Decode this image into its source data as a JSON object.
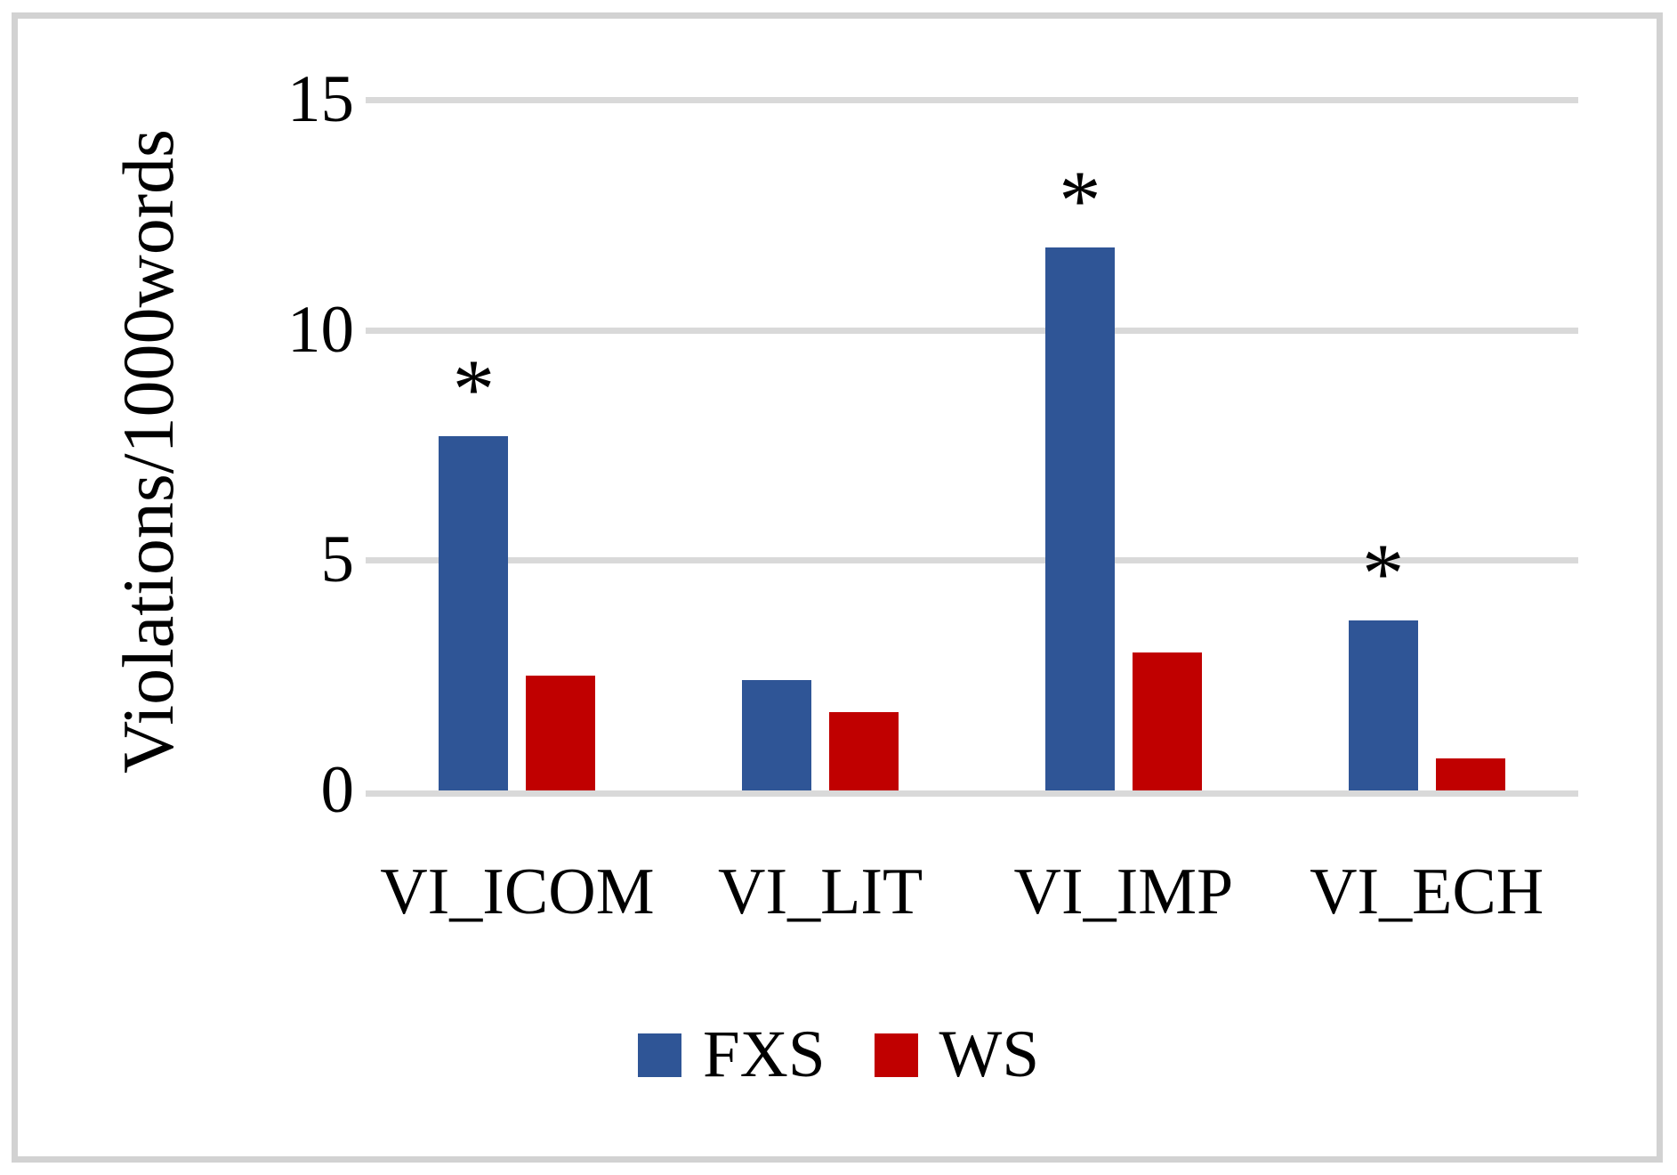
{
  "chart_data": {
    "type": "bar",
    "title": "",
    "categories": [
      "VI_ICOM",
      "VI_LIT",
      "VI_IMP",
      "VI_ECH"
    ],
    "series": [
      {
        "name": "FXS",
        "color": "#2f5596",
        "values": [
          7.7,
          2.4,
          11.8,
          3.7
        ]
      },
      {
        "name": "WS",
        "color": "#c00000",
        "values": [
          2.5,
          1.7,
          3.0,
          0.7
        ]
      }
    ],
    "significance": {
      "symbol": "*",
      "flags": [
        true,
        false,
        true,
        true
      ],
      "applies_to_series": "FXS"
    },
    "xlabel": "",
    "ylabel": "Violations/1000words",
    "yticks": [
      0,
      5,
      10,
      15
    ],
    "ylim": [
      0,
      15
    ],
    "grid": true,
    "gridline_color": "#d9d9d9",
    "legend_position": "bottom"
  }
}
